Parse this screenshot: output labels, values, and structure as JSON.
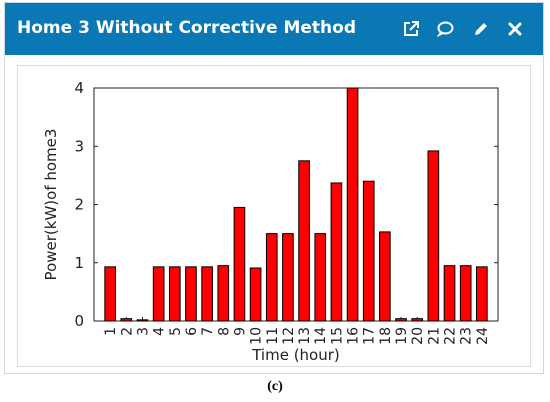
{
  "window": {
    "title": "Home 3 Without Corrective Method",
    "actions": {
      "open_external": "external-link-icon",
      "comment": "comment-icon",
      "edit": "pencil-icon",
      "close": "close-icon"
    },
    "header_color": "#0a78b4"
  },
  "caption": "(c)",
  "chart_data": {
    "type": "bar",
    "title": "",
    "xlabel": "Time (hour)",
    "ylabel": "Power(kW)of home3",
    "categories": [
      "1",
      "2",
      "3",
      "4",
      "5",
      "6",
      "7",
      "8",
      "9",
      "10",
      "11",
      "12",
      "13",
      "14",
      "15",
      "16",
      "17",
      "18",
      "19",
      "20",
      "21",
      "22",
      "23",
      "24"
    ],
    "values": [
      0.93,
      0.04,
      0.02,
      0.93,
      0.93,
      0.93,
      0.93,
      0.95,
      1.95,
      0.91,
      1.5,
      1.5,
      2.75,
      1.5,
      2.37,
      4.0,
      2.4,
      1.53,
      0.04,
      0.04,
      2.92,
      0.95,
      0.95,
      0.93
    ],
    "ylim": [
      0,
      4
    ],
    "yticks": [
      0,
      1,
      2,
      3,
      4
    ],
    "bar_color": "#ff0000",
    "grid": false,
    "legend": "none"
  }
}
